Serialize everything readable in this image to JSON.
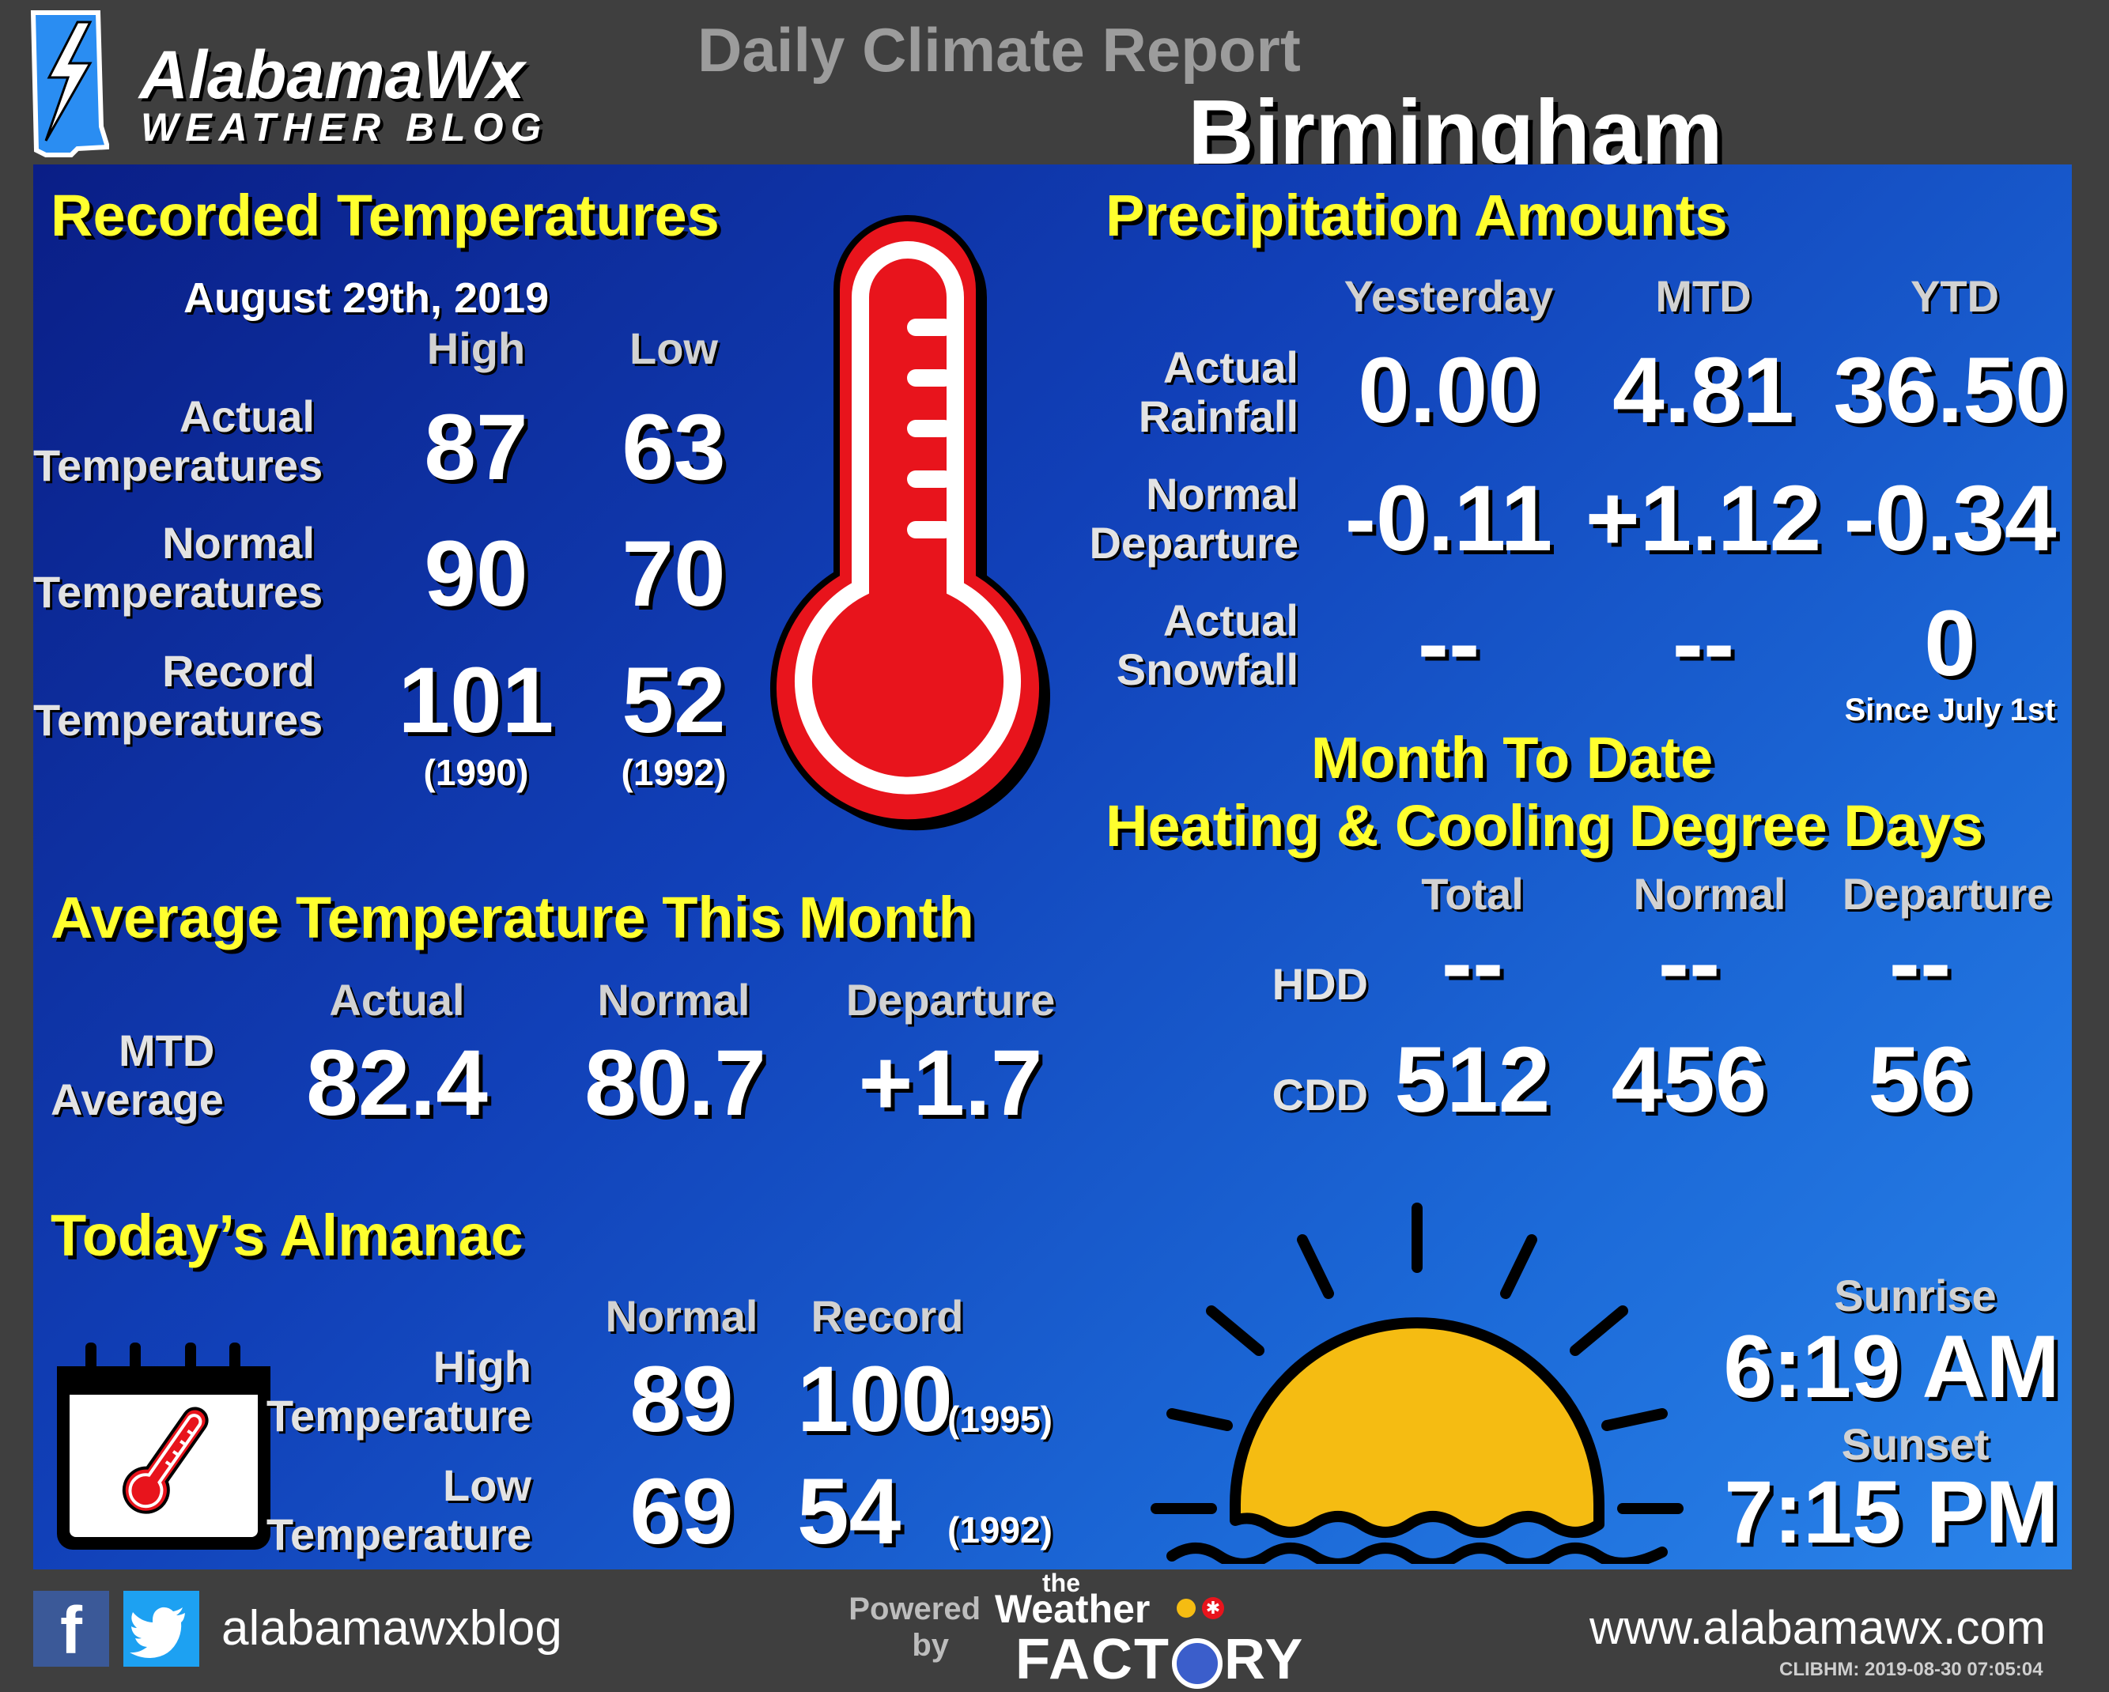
{
  "header": {
    "logo_name": "AlabamaWx",
    "logo_sub": "WEATHER BLOG",
    "report_title": "Daily Climate Report",
    "city": "Birmingham"
  },
  "recorded_temps": {
    "title": "Recorded Temperatures",
    "date": "August  29th, 2019",
    "col_high": "High",
    "col_low": "Low",
    "rows": [
      {
        "label1": "Actual",
        "label2": "Temperatures",
        "high": "87",
        "low": "63"
      },
      {
        "label1": "Normal",
        "label2": "Temperatures",
        "high": "90",
        "low": "70"
      },
      {
        "label1": "Record",
        "label2": "Temperatures",
        "high": "101",
        "low": "52",
        "high_year": "(1990)",
        "low_year": "(1992)"
      }
    ]
  },
  "precipitation": {
    "title": "Precipitation Amounts",
    "cols": [
      "Yesterday",
      "MTD",
      "YTD"
    ],
    "rows": [
      {
        "label1": "Actual",
        "label2": "Rainfall",
        "values": [
          "0.00",
          "4.81",
          "36.50"
        ]
      },
      {
        "label1": "Normal",
        "label2": "Departure",
        "values": [
          "-0.11",
          "+1.12",
          "-0.34"
        ]
      },
      {
        "label1": "Actual",
        "label2": "Snowfall",
        "values": [
          "--",
          "--",
          "0"
        ]
      }
    ],
    "snow_note": "Since  July  1st"
  },
  "degree_days": {
    "title1": "Month To Date",
    "title2": "Heating & Cooling Degree Days",
    "cols": [
      "Total",
      "Normal",
      "Departure"
    ],
    "rows": [
      {
        "label": "HDD",
        "values": [
          "--",
          "--",
          "--"
        ]
      },
      {
        "label": "CDD",
        "values": [
          "512",
          "456",
          "56"
        ]
      }
    ]
  },
  "avg_temp": {
    "title": "Average Temperature This Month",
    "cols": [
      "Actual",
      "Normal",
      "Departure"
    ],
    "label1": "MTD",
    "label2": "Average",
    "values": [
      "82.4",
      "80.7",
      "+1.7"
    ]
  },
  "almanac": {
    "title": "Today’s Almanac",
    "cols": [
      "Normal",
      "Record"
    ],
    "rows": [
      {
        "label1": "High",
        "label2": "Temperature",
        "normal": "89",
        "record": "100",
        "year": "(1995)"
      },
      {
        "label1": "Low",
        "label2": "Temperature",
        "normal": "69",
        "record": "54",
        "year": "(1992)"
      }
    ]
  },
  "sun": {
    "sunrise_label": "Sunrise",
    "sunrise": "6:19 AM",
    "sunset_label": "Sunset",
    "sunset": "7:15 PM"
  },
  "footer": {
    "social_handle": "alabamawxblog",
    "powered": "Powered",
    "by": "by",
    "factory_the": "the",
    "factory_weather": "Weather",
    "factory_name": "FACT",
    "factory_name_end": "RY",
    "website": "www.alabamawx.com",
    "stamp": "CLIBHM:  2019-08-30  07:05:04"
  },
  "colors": {
    "title_yellow": "#ffff2e",
    "thermo_red": "#e8141c",
    "sun_yellow": "#f5bc12",
    "panel_blue": "#1140b8"
  }
}
